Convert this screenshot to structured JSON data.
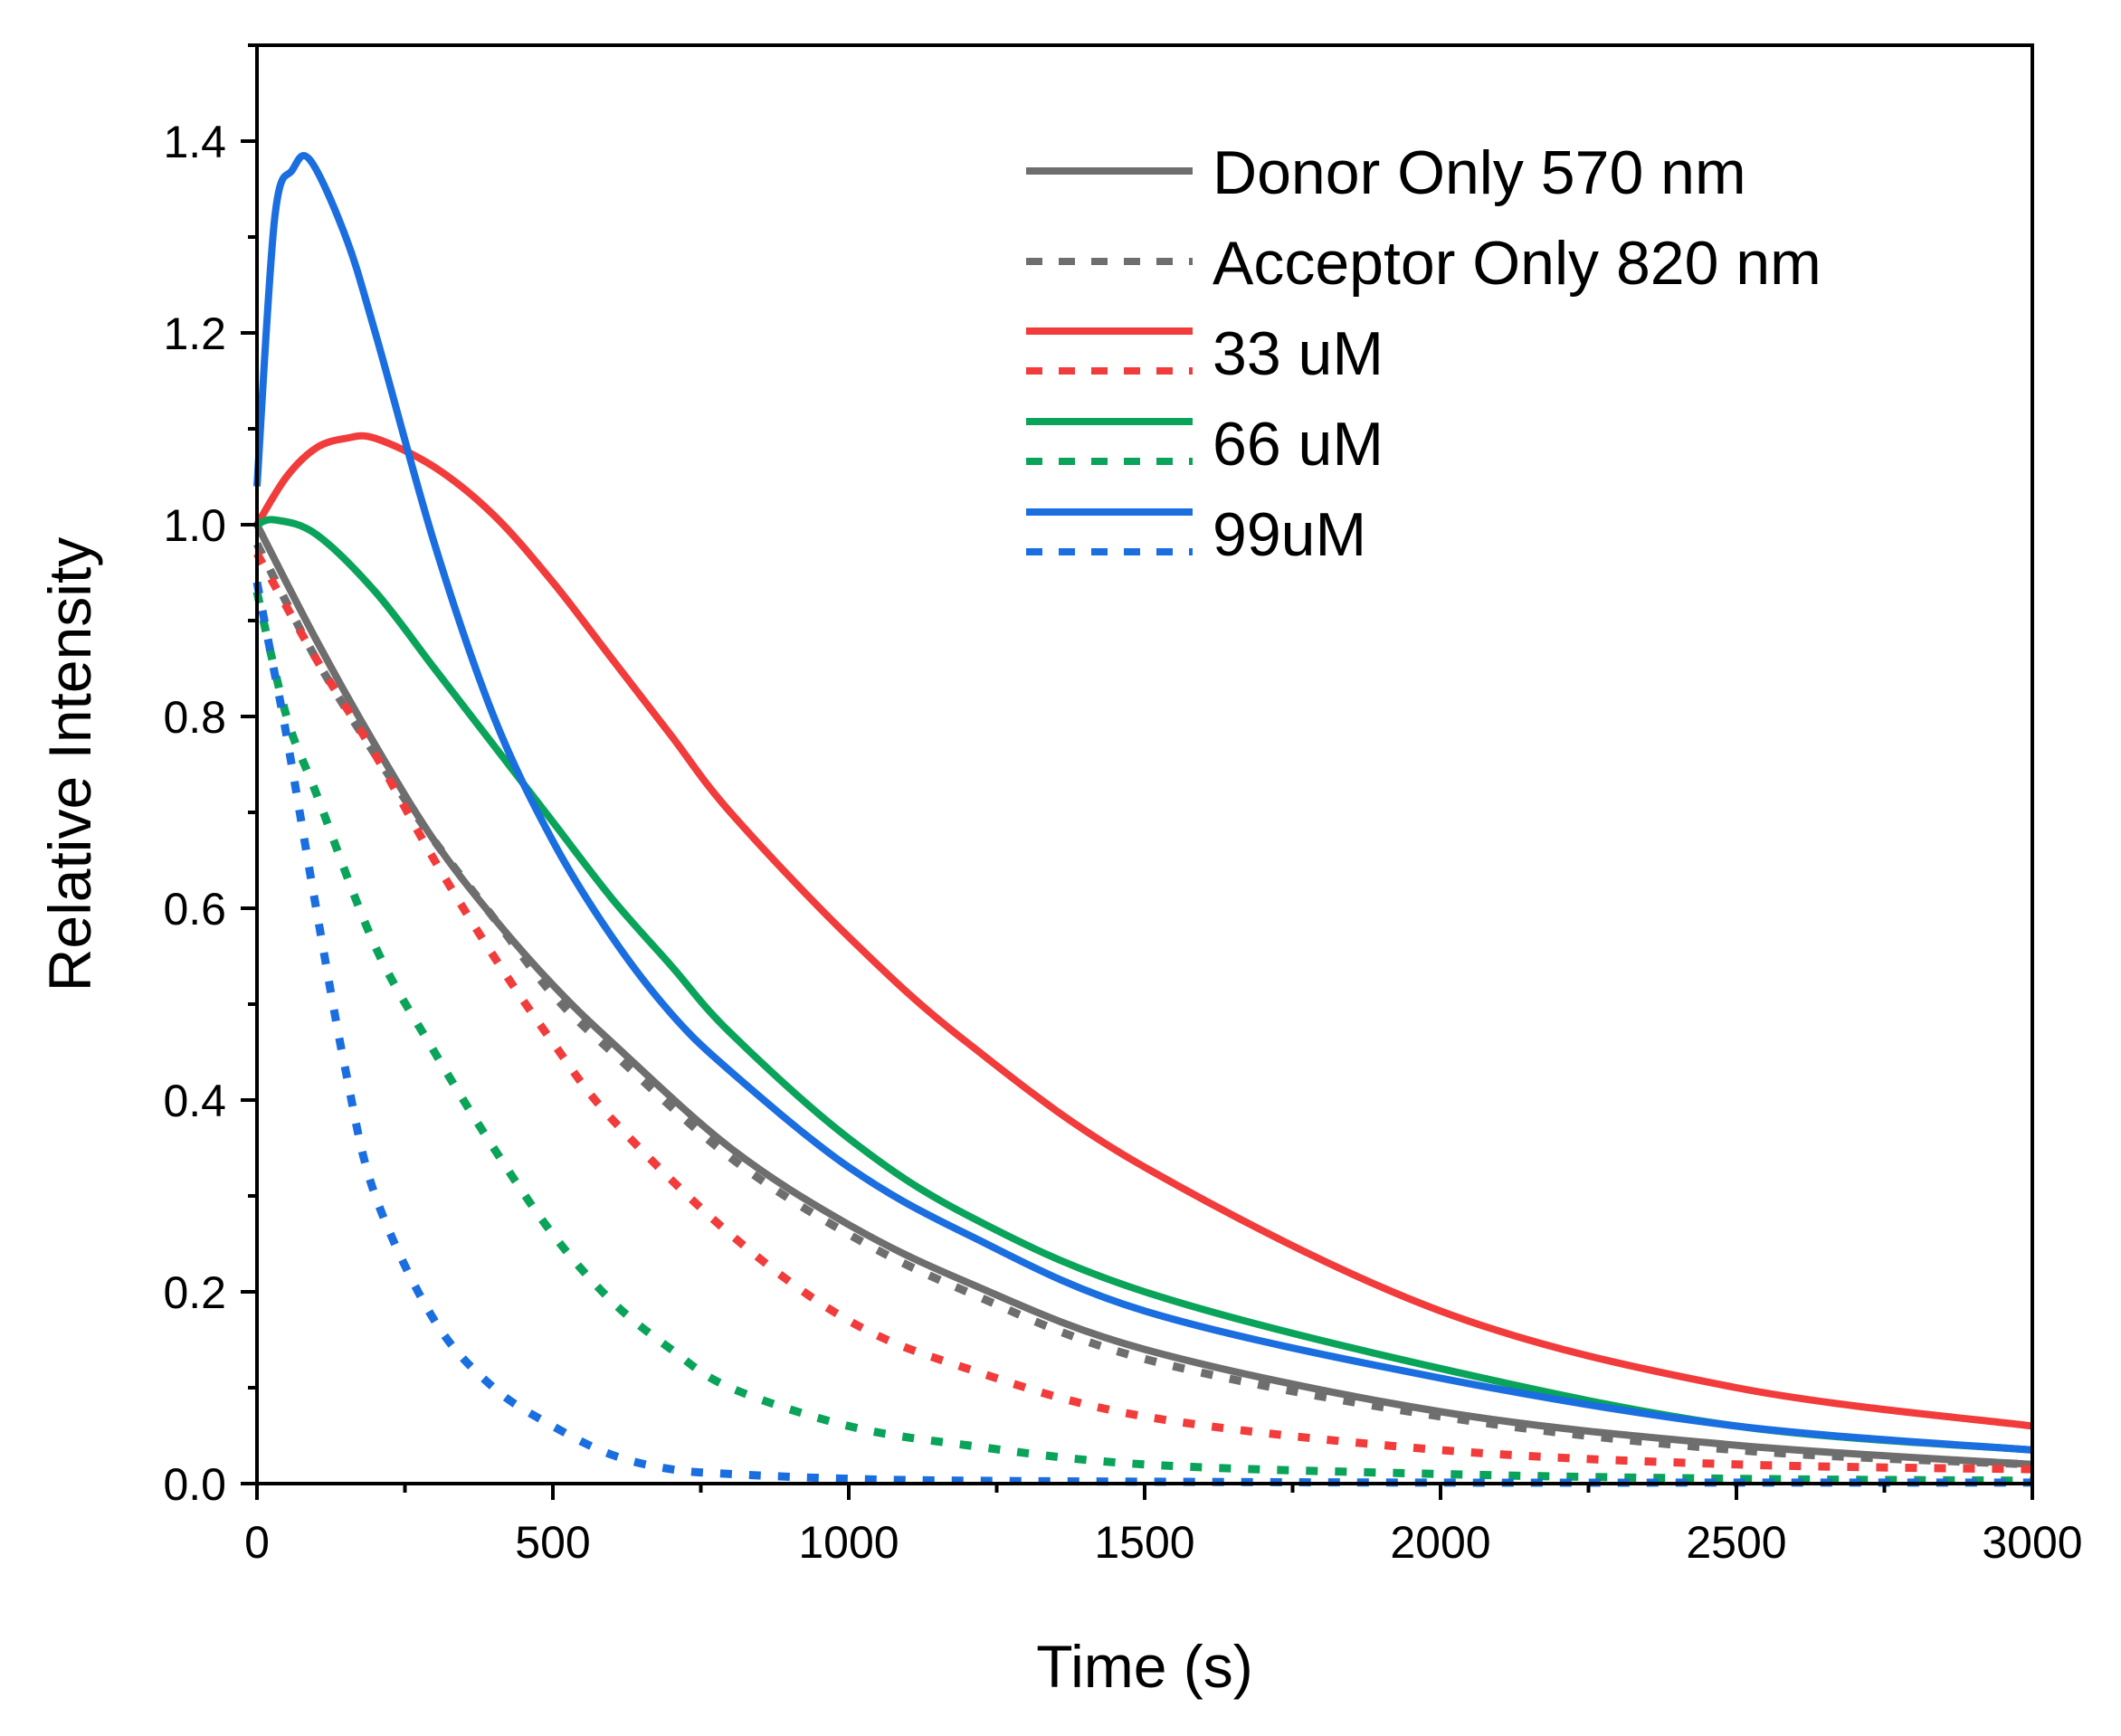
{
  "chart_data": {
    "type": "line",
    "title": "",
    "xlabel": "Time (s)",
    "ylabel": "Relative Intensity",
    "xlim": [
      0,
      3000
    ],
    "ylim": [
      0,
      1.5
    ],
    "x_ticks": [
      0,
      500,
      1000,
      1500,
      2000,
      2500,
      3000
    ],
    "y_ticks": [
      0.0,
      0.2,
      0.4,
      0.6,
      0.8,
      1.0,
      1.2,
      1.4
    ],
    "x_tick_labels": [
      "0",
      "500",
      "1000",
      "1500",
      "2000",
      "2500",
      "3000"
    ],
    "y_tick_labels": [
      "0.0",
      "0.2",
      "0.4",
      "0.6",
      "0.8",
      "1.0",
      "1.2",
      "1.4"
    ],
    "grid": false,
    "legend_position": "top-right",
    "legend": [
      {
        "label": "Donor Only 570 nm",
        "color": "#6e6e6e",
        "styles": [
          "solid"
        ]
      },
      {
        "label": "Acceptor Only 820 nm",
        "color": "#6e6e6e",
        "styles": [
          "dotted"
        ]
      },
      {
        "label": "33 uM",
        "color": "#f23b3b",
        "styles": [
          "solid",
          "dotted"
        ]
      },
      {
        "label": "66 uM",
        "color": "#0aa35a",
        "styles": [
          "solid",
          "dotted"
        ]
      },
      {
        "label": "99uM",
        "color": "#1a6ee0",
        "styles": [
          "solid",
          "dotted"
        ]
      }
    ],
    "series": [
      {
        "name": "Donor Only 570 nm",
        "color": "#6e6e6e",
        "style": "solid",
        "x": [
          0,
          100,
          200,
          300,
          400,
          500,
          600,
          800,
          1000,
          1200,
          1500,
          2000,
          2500,
          3000
        ],
        "y": [
          1.0,
          0.88,
          0.77,
          0.67,
          0.59,
          0.52,
          0.46,
          0.35,
          0.27,
          0.21,
          0.14,
          0.075,
          0.04,
          0.02
        ]
      },
      {
        "name": "Acceptor Only 820 nm",
        "color": "#6e6e6e",
        "style": "dotted",
        "x": [
          0,
          100,
          200,
          300,
          400,
          500,
          600,
          800,
          1000,
          1200,
          1500,
          2000,
          2500,
          3000
        ],
        "y": [
          0.98,
          0.86,
          0.76,
          0.67,
          0.59,
          0.51,
          0.45,
          0.34,
          0.26,
          0.2,
          0.13,
          0.07,
          0.035,
          0.02
        ]
      },
      {
        "name": "33 uM (570 nm)",
        "color": "#f23b3b",
        "style": "solid",
        "x": [
          0,
          50,
          100,
          150,
          200,
          300,
          400,
          500,
          600,
          700,
          800,
          1000,
          1200,
          1500,
          2000,
          2500,
          3000
        ],
        "y": [
          1.0,
          1.05,
          1.08,
          1.09,
          1.09,
          1.06,
          1.01,
          0.94,
          0.86,
          0.78,
          0.7,
          0.57,
          0.46,
          0.33,
          0.18,
          0.1,
          0.06
        ]
      },
      {
        "name": "33 uM (820 nm)",
        "color": "#f23b3b",
        "style": "dotted",
        "x": [
          0,
          100,
          200,
          300,
          400,
          500,
          600,
          800,
          1000,
          1200,
          1500,
          2000,
          2500,
          3000
        ],
        "y": [
          0.97,
          0.86,
          0.76,
          0.65,
          0.55,
          0.46,
          0.38,
          0.26,
          0.17,
          0.12,
          0.07,
          0.035,
          0.02,
          0.015
        ]
      },
      {
        "name": "66 uM (570 nm)",
        "color": "#0aa35a",
        "style": "solid",
        "x": [
          0,
          30,
          100,
          200,
          300,
          400,
          500,
          600,
          700,
          800,
          1000,
          1200,
          1500,
          2000,
          2500,
          3000
        ],
        "y": [
          1.0,
          1.005,
          0.99,
          0.93,
          0.85,
          0.77,
          0.69,
          0.61,
          0.54,
          0.47,
          0.36,
          0.28,
          0.2,
          0.12,
          0.06,
          0.035
        ]
      },
      {
        "name": "66 uM (820 nm)",
        "color": "#0aa35a",
        "style": "dotted",
        "x": [
          0,
          50,
          100,
          200,
          300,
          400,
          500,
          600,
          700,
          800,
          1000,
          1200,
          1500,
          2000,
          2500,
          3000
        ],
        "y": [
          0.93,
          0.8,
          0.72,
          0.56,
          0.45,
          0.35,
          0.26,
          0.19,
          0.14,
          0.1,
          0.06,
          0.04,
          0.02,
          0.01,
          0.005,
          0.003
        ]
      },
      {
        "name": "99uM (570 nm)",
        "color": "#1a6ee0",
        "style": "solid",
        "x": [
          0,
          30,
          60,
          90,
          150,
          200,
          300,
          400,
          500,
          600,
          700,
          800,
          1000,
          1200,
          1500,
          2000,
          2500,
          3000
        ],
        "y": [
          1.04,
          1.32,
          1.37,
          1.38,
          1.3,
          1.2,
          0.98,
          0.8,
          0.67,
          0.57,
          0.49,
          0.43,
          0.33,
          0.26,
          0.18,
          0.11,
          0.06,
          0.035
        ]
      },
      {
        "name": "99uM (820 nm)",
        "color": "#1a6ee0",
        "style": "dotted",
        "x": [
          0,
          25,
          50,
          100,
          150,
          200,
          300,
          400,
          500,
          600,
          700,
          800,
          1000,
          1200,
          1500,
          2000,
          2500,
          3000
        ],
        "y": [
          0.94,
          0.86,
          0.78,
          0.6,
          0.43,
          0.3,
          0.17,
          0.1,
          0.06,
          0.03,
          0.015,
          0.01,
          0.005,
          0.003,
          0.002,
          0.001,
          0.001,
          0.001
        ]
      }
    ]
  }
}
